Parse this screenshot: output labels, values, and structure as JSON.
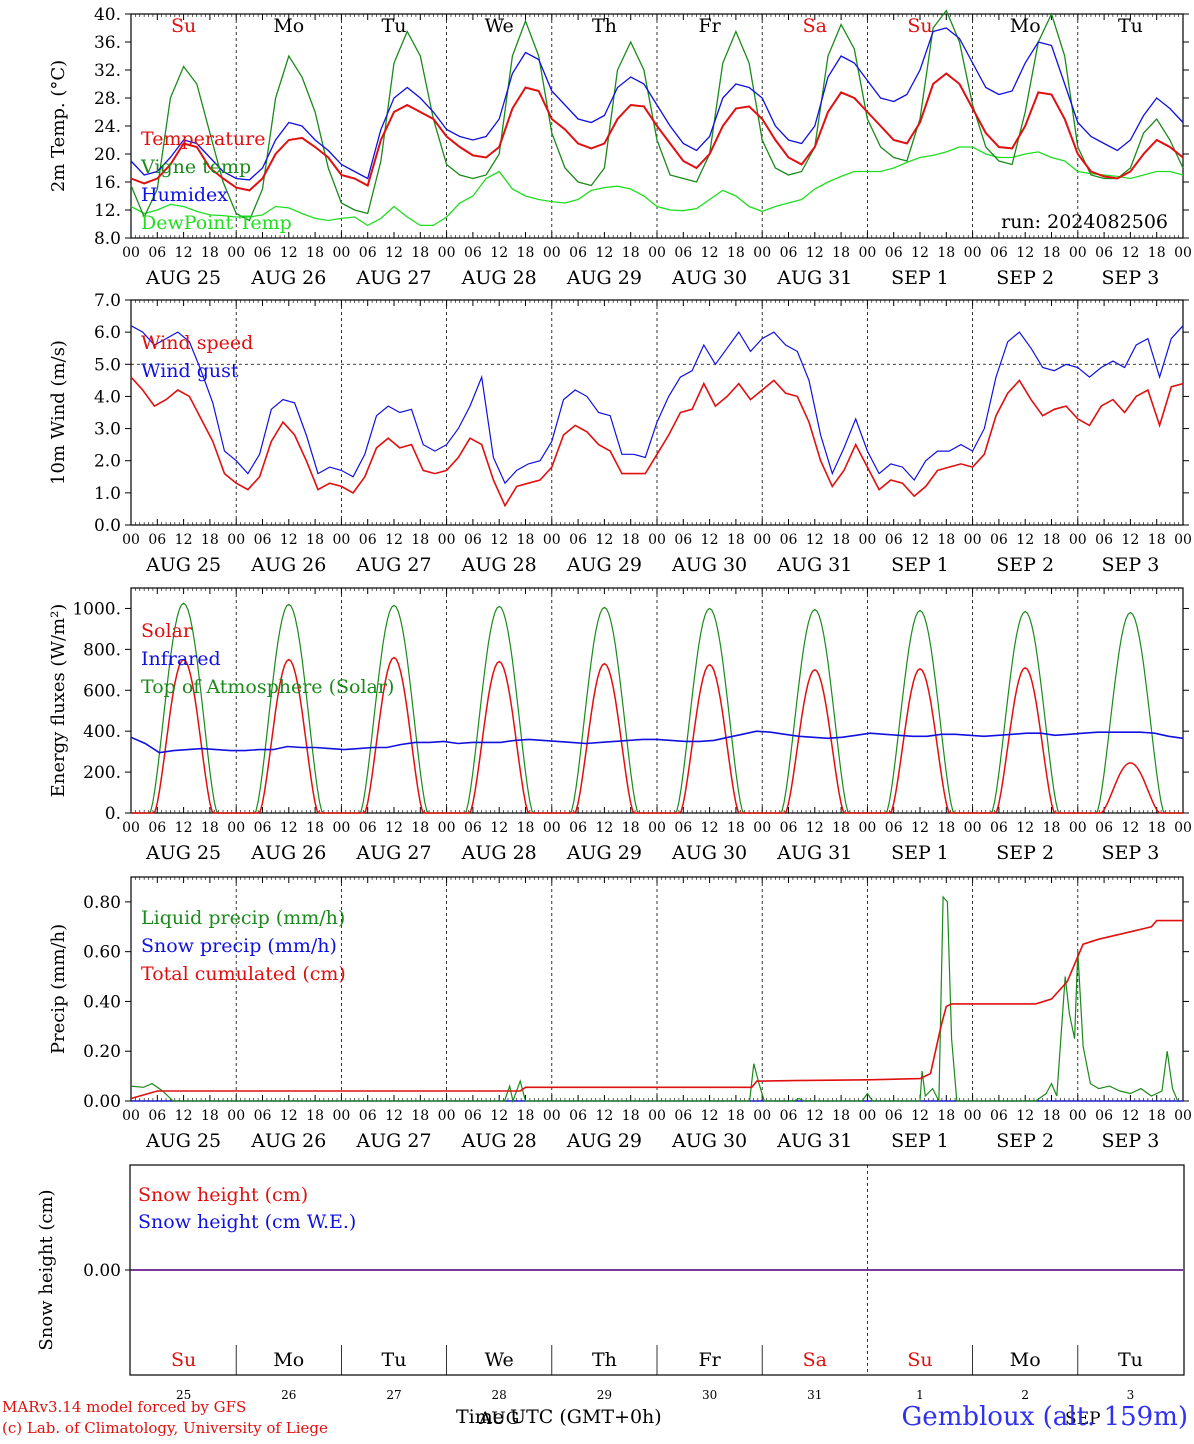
{
  "run_label": "run: 2024082506",
  "station_title": "Gembloux (alt. 159m)",
  "footer": {
    "line1": "MARv3.14 model forced by GFS",
    "line2": "(c) Lab. of Climatology, University of Liege",
    "time_label": "Time UTC (GMT+0h)",
    "aug_label": "AUG",
    "sep_label": "SEP"
  },
  "x_hour_ticks": [
    "00",
    "06",
    "12",
    "18"
  ],
  "last_hour_tick": "00",
  "dates": [
    "AUG 25",
    "AUG 26",
    "AUG 27",
    "AUG 28",
    "AUG 29",
    "AUG 30",
    "AUG 31",
    "SEP  1",
    "SEP  2",
    "SEP  3"
  ],
  "weekdays": [
    "Su",
    "Mo",
    "Tu",
    "We",
    "Th",
    "Fr",
    "Sa",
    "Su",
    "Mo",
    "Tu"
  ],
  "day_numbers": [
    "25",
    "26",
    "27",
    "28",
    "29",
    "30",
    "31",
    "1",
    "2",
    "3"
  ],
  "colors": {
    "weekend": "#e01010",
    "weekday": "#000000",
    "red": "#e01010",
    "green": "#1a8a1a",
    "blue": "#1010e0",
    "lightgreen": "#20dd20",
    "purple": "#7a3a9a"
  },
  "chart_data": [
    {
      "type": "line",
      "ylabel": "2m Temp. (°C)",
      "ylim": [
        8,
        40
      ],
      "yticks": [
        "8.0",
        "12.",
        "16.",
        "20.",
        "24.",
        "28.",
        "32.",
        "36.",
        "40."
      ],
      "x_days": 10,
      "grid": "vertical dashed at day boundaries",
      "series": [
        {
          "name": "Temperature",
          "color": "red",
          "values": [
            16.5,
            15.8,
            16.5,
            18.5,
            21.5,
            21,
            18,
            16.5,
            15.2,
            14.8,
            16.5,
            20,
            22,
            22.3,
            21,
            19.5,
            17,
            16.5,
            15.5,
            22,
            26,
            27,
            26,
            25,
            22.5,
            21,
            19.8,
            19.5,
            21,
            26.5,
            29.5,
            29,
            25,
            23.5,
            21.5,
            20.8,
            21.5,
            25,
            27,
            26.8,
            24,
            21.5,
            19,
            18,
            20,
            24,
            26.5,
            26.8,
            25,
            22,
            19.5,
            18.5,
            21,
            26,
            28.8,
            28,
            26,
            24,
            22,
            21.5,
            24.5,
            30,
            31.5,
            30,
            26.5,
            23,
            21,
            20.8,
            24,
            28.8,
            28.5,
            25,
            20,
            17.5,
            16.8,
            16.5,
            17.5,
            20,
            22,
            21,
            19.5
          ]
        },
        {
          "name": "Vigne temp",
          "color": "green",
          "values": [
            15.5,
            11,
            15,
            28,
            32.5,
            30,
            23,
            16,
            11.5,
            10.5,
            15,
            28,
            34,
            31,
            26,
            18,
            13,
            12,
            11.5,
            19,
            33,
            37.5,
            34,
            25,
            18.5,
            17,
            16.5,
            17,
            20,
            34,
            39,
            34,
            23,
            18,
            16,
            15.5,
            18,
            32,
            36,
            32,
            22,
            17,
            16.5,
            16,
            20,
            33,
            37.5,
            33,
            22,
            18,
            17,
            17.5,
            21,
            34,
            38.5,
            35,
            25,
            21,
            19.5,
            19,
            25,
            38,
            40.5,
            36,
            27,
            21,
            19,
            18.5,
            26,
            36,
            40,
            34,
            21,
            17,
            16.5,
            16.5,
            18,
            23,
            25,
            22,
            18
          ]
        },
        {
          "name": "Humidex",
          "color": "blue",
          "values": [
            19,
            17,
            17.5,
            19.5,
            22,
            21.5,
            19.5,
            17.5,
            16.5,
            16.3,
            18,
            22,
            24.5,
            24,
            22,
            20.5,
            18.5,
            17.5,
            16.5,
            23.5,
            28,
            29.5,
            28,
            26,
            23.5,
            22.5,
            22,
            22.5,
            25,
            31.5,
            34.5,
            33.5,
            29,
            27,
            25,
            24.5,
            25.5,
            29.5,
            31,
            30,
            27,
            24,
            21.5,
            20.5,
            22.5,
            28,
            30,
            29.5,
            28,
            24,
            22,
            21.5,
            24,
            31,
            34,
            33,
            30.5,
            28,
            27.5,
            28.5,
            32,
            37.5,
            38,
            36.5,
            33,
            29.5,
            28.5,
            29,
            33,
            36,
            35.5,
            30,
            24.5,
            22.5,
            21.5,
            20.5,
            22,
            25.5,
            28,
            26.5,
            24.5
          ]
        },
        {
          "name": "DewPoint Temp",
          "color": "lightgreen",
          "values": [
            12.5,
            11.5,
            12,
            12.8,
            12.5,
            11.8,
            11.3,
            11.2,
            11,
            11,
            11.3,
            12.5,
            12.3,
            11.5,
            10.8,
            10.5,
            10.8,
            11,
            9.8,
            10.8,
            12.5,
            11,
            9.8,
            9.8,
            11,
            13,
            14,
            16.5,
            17.5,
            15,
            14,
            13.5,
            13.2,
            13,
            13.5,
            14.8,
            15.2,
            15.4,
            15,
            14,
            12.5,
            12,
            11.9,
            12.2,
            13.5,
            14.8,
            14,
            12.5,
            11.8,
            12.5,
            13,
            13.5,
            15,
            16,
            16.8,
            17.5,
            17.5,
            17.5,
            18,
            18.8,
            19.5,
            19.8,
            20.3,
            21,
            21,
            20,
            19.5,
            19.5,
            20,
            20.3,
            19.5,
            19,
            17.5,
            17.2,
            17,
            16.8,
            16.5,
            17,
            17.5,
            17.5,
            17
          ]
        }
      ]
    },
    {
      "type": "line",
      "ylabel": "10m Wind (m/s)",
      "ylim": [
        0,
        7
      ],
      "yticks": [
        "0.0",
        "1.0",
        "2.0",
        "3.0",
        "4.0",
        "5.0",
        "6.0",
        "7.0"
      ],
      "reference_line": 5,
      "series": [
        {
          "name": "Wind speed",
          "color": "red",
          "values": [
            4.6,
            4.2,
            3.7,
            3.9,
            4.2,
            4.0,
            3.3,
            2.6,
            1.6,
            1.3,
            1.1,
            1.5,
            2.6,
            3.2,
            2.8,
            2.0,
            1.1,
            1.3,
            1.2,
            1.0,
            1.5,
            2.4,
            2.7,
            2.4,
            2.5,
            1.7,
            1.6,
            1.7,
            2.1,
            2.7,
            2.5,
            1.4,
            0.6,
            1.2,
            1.3,
            1.4,
            1.8,
            2.8,
            3.1,
            2.9,
            2.5,
            2.3,
            1.6,
            1.6,
            1.6,
            2.2,
            2.8,
            3.5,
            3.6,
            4.4,
            3.7,
            4.0,
            4.4,
            3.9,
            4.2,
            4.5,
            4.1,
            4.0,
            3.2,
            2.0,
            1.2,
            1.7,
            2.5,
            1.8,
            1.1,
            1.4,
            1.3,
            0.9,
            1.2,
            1.7,
            1.8,
            1.9,
            1.8,
            2.2,
            3.4,
            4.1,
            4.5,
            3.9,
            3.4,
            3.6,
            3.7,
            3.3,
            3.1,
            3.7,
            3.9,
            3.5,
            4.0,
            4.2,
            3.1,
            4.3,
            4.4
          ]
        },
        {
          "name": "Wind gust",
          "color": "blue",
          "values": [
            6.2,
            6.0,
            5.6,
            5.8,
            6.0,
            5.7,
            4.8,
            3.8,
            2.3,
            2.0,
            1.6,
            2.2,
            3.6,
            3.9,
            3.8,
            2.8,
            1.6,
            1.8,
            1.7,
            1.5,
            2.2,
            3.4,
            3.7,
            3.5,
            3.6,
            2.5,
            2.3,
            2.5,
            3.0,
            3.7,
            4.6,
            2.1,
            1.3,
            1.7,
            1.9,
            2.0,
            2.6,
            3.9,
            4.2,
            4.0,
            3.5,
            3.4,
            2.2,
            2.2,
            2.1,
            3.2,
            4.0,
            4.6,
            4.8,
            5.6,
            5.0,
            5.5,
            6.0,
            5.4,
            5.8,
            6.0,
            5.6,
            5.4,
            4.5,
            2.8,
            1.6,
            2.4,
            3.3,
            2.3,
            1.6,
            1.9,
            1.8,
            1.4,
            2.0,
            2.3,
            2.3,
            2.5,
            2.3,
            3.0,
            4.6,
            5.7,
            6.0,
            5.5,
            4.9,
            4.8,
            5.0,
            4.9,
            4.6,
            4.9,
            5.1,
            4.9,
            5.6,
            5.8,
            4.6,
            5.8,
            6.2
          ]
        }
      ]
    },
    {
      "type": "line",
      "ylabel": "Energy fluxes (W/m²)",
      "ylim": [
        0,
        1100
      ],
      "yticks": [
        "0.",
        "200.",
        "400.",
        "600.",
        "800.",
        "1000."
      ],
      "series": [
        {
          "name": "Solar",
          "color": "red",
          "day_peaks": [
            750,
            750,
            760,
            740,
            730,
            725,
            700,
            705,
            710,
            245
          ]
        },
        {
          "name": "Infrared",
          "color": "blue",
          "values": [
            370,
            340,
            295,
            305,
            310,
            315,
            310,
            305,
            305,
            310,
            310,
            325,
            320,
            320,
            315,
            310,
            315,
            320,
            320,
            335,
            345,
            345,
            350,
            340,
            345,
            345,
            345,
            355,
            360,
            355,
            350,
            345,
            340,
            345,
            350,
            355,
            360,
            360,
            355,
            350,
            350,
            355,
            370,
            385,
            400,
            395,
            385,
            375,
            370,
            365,
            370,
            380,
            390,
            385,
            380,
            375,
            375,
            385,
            385,
            380,
            375,
            380,
            385,
            390,
            390,
            380,
            385,
            390,
            395,
            395,
            395,
            395,
            390,
            375,
            365
          ]
        },
        {
          "name": "Top of Atmosphere (Solar)",
          "color": "green",
          "day_peaks": [
            1025,
            1020,
            1015,
            1010,
            1005,
            1000,
            995,
            990,
            985,
            980
          ]
        }
      ]
    },
    {
      "type": "line",
      "ylabel": "Precip (mm/h)",
      "ylim": [
        0,
        0.9
      ],
      "yticks": [
        "0.00",
        "0.20",
        "0.40",
        "0.60",
        "0.80"
      ],
      "series": [
        {
          "name": "Liquid precip (mm/h)",
          "color": "green",
          "points": [
            [
              0,
              0.06
            ],
            [
              0.12,
              0.055
            ],
            [
              0.2,
              0.07
            ],
            [
              0.3,
              0.04
            ],
            [
              0.4,
              0
            ],
            [
              3.55,
              0
            ],
            [
              3.6,
              0.06
            ],
            [
              3.63,
              0
            ],
            [
              3.7,
              0.08
            ],
            [
              3.75,
              0
            ],
            [
              5.88,
              0
            ],
            [
              5.92,
              0.15
            ],
            [
              5.97,
              0.07
            ],
            [
              6.02,
              0
            ],
            [
              6.3,
              0
            ],
            [
              6.35,
              0.01
            ],
            [
              6.4,
              0
            ],
            [
              6.95,
              0
            ],
            [
              7.0,
              0.03
            ],
            [
              7.05,
              0
            ],
            [
              7.5,
              0
            ],
            [
              7.52,
              0.12
            ],
            [
              7.55,
              0.02
            ],
            [
              7.62,
              0.05
            ],
            [
              7.68,
              0
            ],
            [
              7.72,
              0.82
            ],
            [
              7.76,
              0.8
            ],
            [
              7.8,
              0.25
            ],
            [
              7.85,
              0
            ],
            [
              8.6,
              0
            ],
            [
              8.7,
              0.03
            ],
            [
              8.75,
              0.07
            ],
            [
              8.8,
              0.02
            ],
            [
              8.88,
              0.5
            ],
            [
              8.92,
              0.35
            ],
            [
              8.97,
              0.25
            ],
            [
              9.0,
              0.6
            ],
            [
              9.05,
              0.22
            ],
            [
              9.12,
              0.07
            ],
            [
              9.2,
              0.05
            ],
            [
              9.3,
              0.06
            ],
            [
              9.4,
              0.04
            ],
            [
              9.5,
              0.03
            ],
            [
              9.6,
              0.05
            ],
            [
              9.7,
              0.02
            ],
            [
              9.8,
              0.04
            ],
            [
              9.85,
              0.2
            ],
            [
              9.9,
              0.05
            ],
            [
              9.95,
              0
            ]
          ]
        },
        {
          "name": "Snow precip (mm/h)",
          "color": "blue",
          "points": [
            [
              0,
              0
            ],
            [
              10,
              0
            ]
          ]
        },
        {
          "name": "Total cumulated (cm)",
          "color": "red",
          "points": [
            [
              0,
              0.01
            ],
            [
              0.25,
              0.04
            ],
            [
              3.7,
              0.04
            ],
            [
              3.75,
              0.055
            ],
            [
              5.9,
              0.055
            ],
            [
              5.95,
              0.08
            ],
            [
              6.3,
              0.082
            ],
            [
              7.0,
              0.085
            ],
            [
              7.5,
              0.09
            ],
            [
              7.6,
              0.11
            ],
            [
              7.7,
              0.3
            ],
            [
              7.75,
              0.38
            ],
            [
              7.8,
              0.39
            ],
            [
              8.6,
              0.39
            ],
            [
              8.75,
              0.41
            ],
            [
              8.9,
              0.48
            ],
            [
              9.0,
              0.58
            ],
            [
              9.05,
              0.63
            ],
            [
              9.2,
              0.65
            ],
            [
              9.5,
              0.68
            ],
            [
              9.7,
              0.7
            ],
            [
              9.75,
              0.725
            ],
            [
              10,
              0.725
            ]
          ]
        }
      ]
    },
    {
      "type": "line",
      "ylabel": "Snow height (cm)",
      "yticks": [
        "0.00"
      ],
      "series": [
        {
          "name": "Snow height (cm)",
          "color": "red",
          "values": [
            0,
            0
          ]
        },
        {
          "name": "Snow height (cm W.E.)",
          "color": "blue",
          "values": [
            0,
            0
          ]
        }
      ]
    }
  ]
}
